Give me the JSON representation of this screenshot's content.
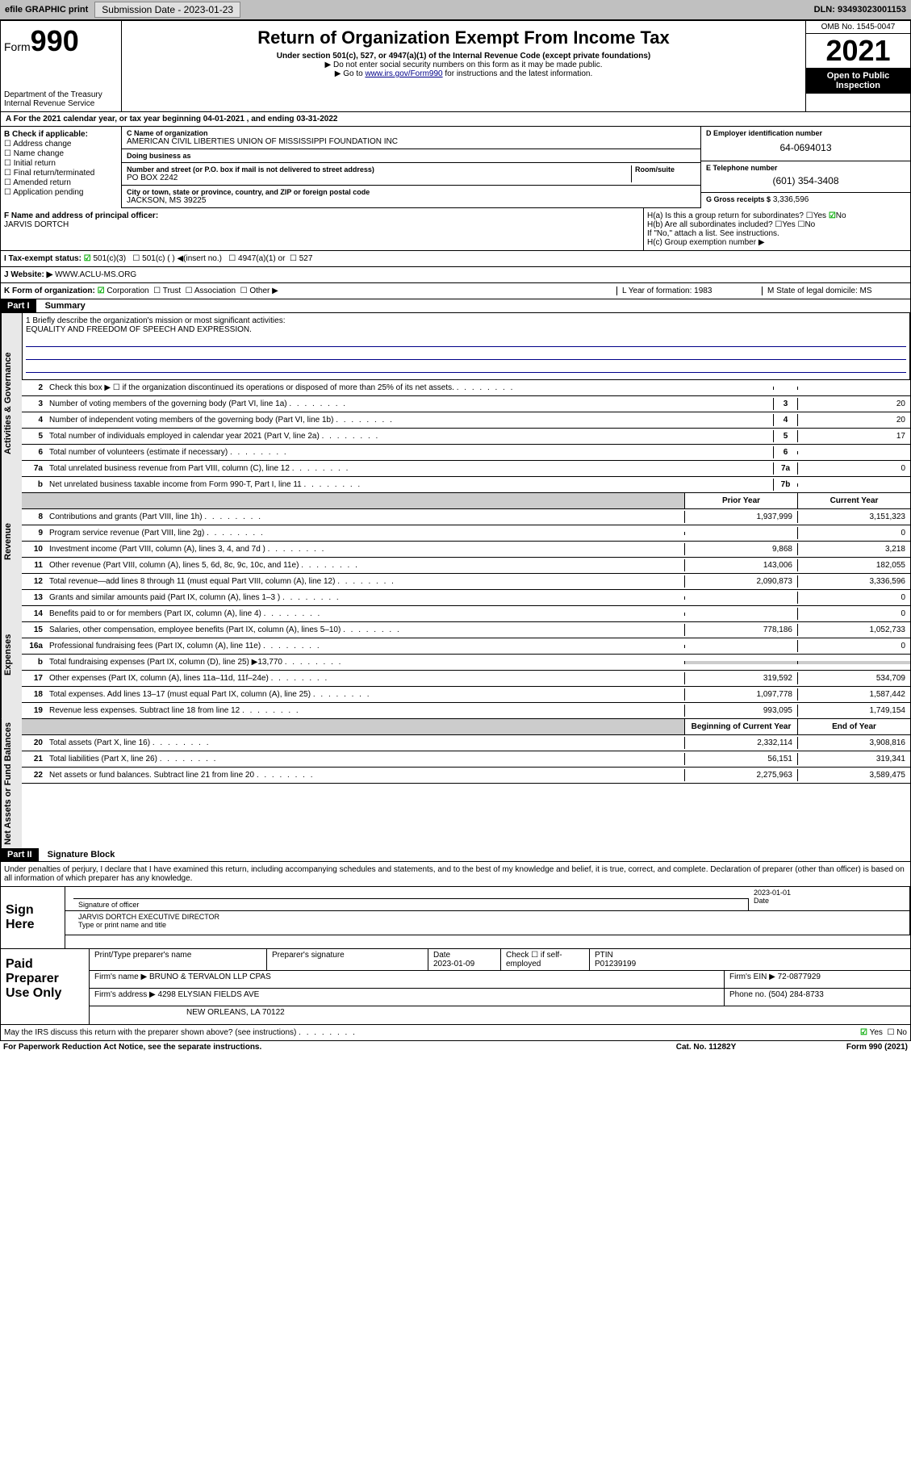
{
  "topbar": {
    "efile": "efile GRAPHIC print",
    "submission_label": "Submission Date - 2023-01-23",
    "dln": "DLN: 93493023001153"
  },
  "header": {
    "form_prefix": "Form",
    "form_number": "990",
    "title": "Return of Organization Exempt From Income Tax",
    "subtitle": "Under section 501(c), 527, or 4947(a)(1) of the Internal Revenue Code (except private foundations)",
    "note1": "▶ Do not enter social security numbers on this form as it may be made public.",
    "note2_pre": "▶ Go to ",
    "note2_link": "www.irs.gov/Form990",
    "note2_post": " for instructions and the latest information.",
    "dept": "Department of the Treasury",
    "irs": "Internal Revenue Service",
    "omb": "OMB No. 1545-0047",
    "taxyear": "2021",
    "inspect": "Open to Public Inspection"
  },
  "line_a": "A For the 2021 calendar year, or tax year beginning 04-01-2021  , and ending 03-31-2022",
  "section_b": {
    "label": "B Check if applicable:",
    "items": [
      "Address change",
      "Name change",
      "Initial return",
      "Final return/terminated",
      "Amended return",
      "Application pending"
    ]
  },
  "section_c": {
    "name_label": "C Name of organization",
    "name": "AMERICAN CIVIL LIBERTIES UNION OF MISSISSIPPI FOUNDATION INC",
    "dba_label": "Doing business as",
    "dba": "",
    "street_label": "Number and street (or P.O. box if mail is not delivered to street address)",
    "room_label": "Room/suite",
    "street": "PO BOX 2242",
    "city_label": "City or town, state or province, country, and ZIP or foreign postal code",
    "city": "JACKSON, MS  39225"
  },
  "section_d": {
    "ein_label": "D Employer identification number",
    "ein": "64-0694013",
    "phone_label": "E Telephone number",
    "phone": "(601) 354-3408",
    "gross_label": "G Gross receipts $",
    "gross": "3,336,596"
  },
  "section_f": {
    "label": "F  Name and address of principal officer:",
    "name": "JARVIS DORTCH"
  },
  "section_h": {
    "ha": "H(a)  Is this a group return for subordinates?",
    "ha_ans": "No",
    "hb": "H(b)  Are all subordinates included?",
    "hb_note": "If \"No,\" attach a list. See instructions.",
    "hc": "H(c)  Group exemption number ▶"
  },
  "section_i": {
    "label": "I  Tax-exempt status:",
    "c3": "501(c)(3)",
    "cother": "501(c) (  ) ◀(insert no.)",
    "c4947": "4947(a)(1) or",
    "c527": "527"
  },
  "section_j": {
    "label": "J  Website: ▶",
    "value": "WWW.ACLU-MS.ORG"
  },
  "section_k": {
    "label": "K Form of organization:",
    "opts": [
      "Corporation",
      "Trust",
      "Association",
      "Other ▶"
    ],
    "l": "L Year of formation: 1983",
    "m": "M State of legal domicile: MS"
  },
  "part1": {
    "header": "Part I",
    "title": "Summary"
  },
  "mission": {
    "label": "1  Briefly describe the organization's mission or most significant activities:",
    "text": "EQUALITY AND FREEDOM OF SPEECH AND EXPRESSION."
  },
  "gov_lines": [
    {
      "n": "2",
      "t": "Check this box ▶ ☐  if the organization discontinued its operations or disposed of more than 25% of its net assets.",
      "b": "",
      "v": ""
    },
    {
      "n": "3",
      "t": "Number of voting members of the governing body (Part VI, line 1a)",
      "b": "3",
      "v": "20"
    },
    {
      "n": "4",
      "t": "Number of independent voting members of the governing body (Part VI, line 1b)",
      "b": "4",
      "v": "20"
    },
    {
      "n": "5",
      "t": "Total number of individuals employed in calendar year 2021 (Part V, line 2a)",
      "b": "5",
      "v": "17"
    },
    {
      "n": "6",
      "t": "Total number of volunteers (estimate if necessary)",
      "b": "6",
      "v": ""
    },
    {
      "n": "7a",
      "t": "Total unrelated business revenue from Part VIII, column (C), line 12",
      "b": "7a",
      "v": "0"
    },
    {
      "n": "b",
      "t": "Net unrelated business taxable income from Form 990-T, Part I, line 11",
      "b": "7b",
      "v": ""
    }
  ],
  "col_headers": {
    "prior": "Prior Year",
    "current": "Current Year"
  },
  "rev_lines": [
    {
      "n": "8",
      "t": "Contributions and grants (Part VIII, line 1h)",
      "c1": "1,937,999",
      "c2": "3,151,323"
    },
    {
      "n": "9",
      "t": "Program service revenue (Part VIII, line 2g)",
      "c1": "",
      "c2": "0"
    },
    {
      "n": "10",
      "t": "Investment income (Part VIII, column (A), lines 3, 4, and 7d )",
      "c1": "9,868",
      "c2": "3,218"
    },
    {
      "n": "11",
      "t": "Other revenue (Part VIII, column (A), lines 5, 6d, 8c, 9c, 10c, and 11e)",
      "c1": "143,006",
      "c2": "182,055"
    },
    {
      "n": "12",
      "t": "Total revenue—add lines 8 through 11 (must equal Part VIII, column (A), line 12)",
      "c1": "2,090,873",
      "c2": "3,336,596"
    }
  ],
  "exp_lines": [
    {
      "n": "13",
      "t": "Grants and similar amounts paid (Part IX, column (A), lines 1–3 )",
      "c1": "",
      "c2": "0"
    },
    {
      "n": "14",
      "t": "Benefits paid to or for members (Part IX, column (A), line 4)",
      "c1": "",
      "c2": "0"
    },
    {
      "n": "15",
      "t": "Salaries, other compensation, employee benefits (Part IX, column (A), lines 5–10)",
      "c1": "778,186",
      "c2": "1,052,733"
    },
    {
      "n": "16a",
      "t": "Professional fundraising fees (Part IX, column (A), line 11e)",
      "c1": "",
      "c2": "0"
    },
    {
      "n": "b",
      "t": "Total fundraising expenses (Part IX, column (D), line 25) ▶13,770",
      "c1": "shaded",
      "c2": "shaded"
    },
    {
      "n": "17",
      "t": "Other expenses (Part IX, column (A), lines 11a–11d, 11f–24e)",
      "c1": "319,592",
      "c2": "534,709"
    },
    {
      "n": "18",
      "t": "Total expenses. Add lines 13–17 (must equal Part IX, column (A), line 25)",
      "c1": "1,097,778",
      "c2": "1,587,442"
    },
    {
      "n": "19",
      "t": "Revenue less expenses. Subtract line 18 from line 12",
      "c1": "993,095",
      "c2": "1,749,154"
    }
  ],
  "net_headers": {
    "beg": "Beginning of Current Year",
    "end": "End of Year"
  },
  "net_lines": [
    {
      "n": "20",
      "t": "Total assets (Part X, line 16)",
      "c1": "2,332,114",
      "c2": "3,908,816"
    },
    {
      "n": "21",
      "t": "Total liabilities (Part X, line 26)",
      "c1": "56,151",
      "c2": "319,341"
    },
    {
      "n": "22",
      "t": "Net assets or fund balances. Subtract line 21 from line 20",
      "c1": "2,275,963",
      "c2": "3,589,475"
    }
  ],
  "vert_labels": {
    "gov": "Activities & Governance",
    "rev": "Revenue",
    "exp": "Expenses",
    "net": "Net Assets or Fund Balances"
  },
  "part2": {
    "header": "Part II",
    "title": "Signature Block"
  },
  "penalties": "Under penalties of perjury, I declare that I have examined this return, including accompanying schedules and statements, and to the best of my knowledge and belief, it is true, correct, and complete. Declaration of preparer (other than officer) is based on all information of which preparer has any knowledge.",
  "sign": {
    "label": "Sign Here",
    "sig_officer": "Signature of officer",
    "date_label": "Date",
    "date": "2023-01-01",
    "name": "JARVIS DORTCH  EXECUTIVE DIRECTOR",
    "name_label": "Type or print name and title"
  },
  "prep": {
    "label": "Paid Preparer Use Only",
    "h1": "Print/Type preparer's name",
    "h2": "Preparer's signature",
    "h3": "Date",
    "date": "2023-01-09",
    "h4": "Check ☐ if self-employed",
    "h5": "PTIN",
    "ptin": "P01239199",
    "firm_label": "Firm's name   ▶",
    "firm": "BRUNO & TERVALON LLP CPAS",
    "ein_label": "Firm's EIN ▶",
    "ein": "72-0877929",
    "addr_label": "Firm's address ▶",
    "addr1": "4298 ELYSIAN FIELDS AVE",
    "addr2": "NEW ORLEANS, LA  70122",
    "phone_label": "Phone no.",
    "phone": "(504) 284-8733"
  },
  "discuss": "May the IRS discuss this return with the preparer shown above? (see instructions)",
  "discuss_yes": "Yes",
  "discuss_no": "No",
  "footer": {
    "pra": "For Paperwork Reduction Act Notice, see the separate instructions.",
    "cat": "Cat. No. 11282Y",
    "form": "Form 990 (2021)"
  },
  "colors": {
    "link": "#0000aa",
    "shaded": "#cccccc",
    "check": "#00aa00",
    "border": "#000000"
  }
}
